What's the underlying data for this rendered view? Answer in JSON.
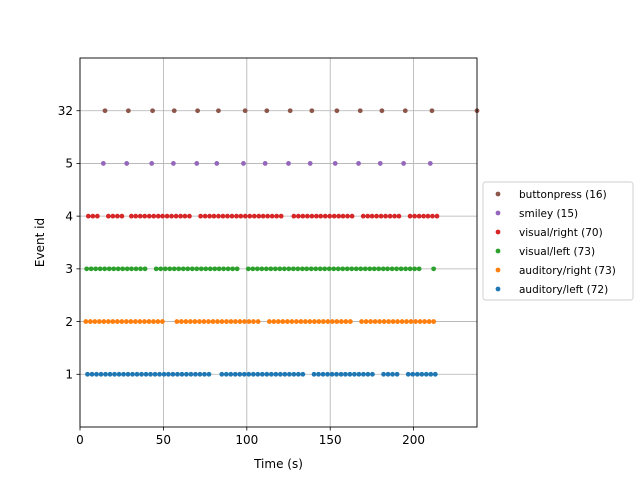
{
  "chart_data": {
    "type": "scatter",
    "xlabel": "Time (s)",
    "ylabel": "Event id",
    "xlim": [
      0,
      238
    ],
    "xticks": [
      0,
      50,
      100,
      150,
      200
    ],
    "yticks": [
      {
        "level": 1,
        "label": "1"
      },
      {
        "level": 2,
        "label": "2"
      },
      {
        "level": 3,
        "label": "3"
      },
      {
        "level": 4,
        "label": "4"
      },
      {
        "level": 5,
        "label": "5"
      },
      {
        "level": 6,
        "label": "32"
      }
    ],
    "grid": true,
    "legend_position": "right",
    "legend_order": [
      "buttonpress",
      "smiley",
      "visual/right",
      "visual/left",
      "auditory/right",
      "auditory/left"
    ],
    "series": [
      {
        "name": "auditory/left",
        "label": "auditory/left (72)",
        "color": "#1f77b4",
        "level": 1,
        "count": 72,
        "start": 4.5,
        "end": 213,
        "gaps": [
          [
            80,
            85
          ],
          [
            136,
            140
          ],
          [
            178,
            182
          ],
          [
            192,
            196
          ]
        ]
      },
      {
        "name": "auditory/right",
        "label": "auditory/right (73)",
        "color": "#ff7f0e",
        "level": 2,
        "count": 73,
        "start": 3.5,
        "end": 212,
        "gaps": [
          [
            52,
            58
          ],
          [
            109,
            113
          ],
          [
            164,
            168
          ]
        ]
      },
      {
        "name": "visual/left",
        "label": "visual/left (73)",
        "color": "#2ca02c",
        "level": 3,
        "count": 73,
        "start": 4,
        "end": 212,
        "gaps": [
          [
            41,
            45
          ],
          [
            96,
            100
          ],
          [
            206,
            212
          ]
        ]
      },
      {
        "name": "visual/right",
        "label": "visual/right (70)",
        "color": "#d62728",
        "level": 4,
        "count": 70,
        "start": 5,
        "end": 214,
        "gaps": [
          [
            12,
            16
          ],
          [
            26,
            29
          ],
          [
            67,
            71
          ],
          [
            123,
            128
          ],
          [
            165,
            169
          ],
          [
            192,
            196
          ]
        ]
      },
      {
        "name": "smiley",
        "label": "smiley (15)",
        "color": "#9467bd",
        "level": 5,
        "count": 15,
        "x": [
          14,
          28,
          43,
          56,
          70,
          82,
          98,
          111,
          125,
          138,
          153,
          167,
          180,
          194,
          210
        ]
      },
      {
        "name": "buttonpress",
        "label": "buttonpress (16)",
        "color": "#8c564b",
        "level": 6,
        "count": 16,
        "x": [
          15,
          29,
          43.5,
          56.5,
          70.5,
          83,
          99,
          112,
          126,
          139,
          154,
          168,
          181,
          195,
          211,
          238
        ]
      }
    ]
  }
}
